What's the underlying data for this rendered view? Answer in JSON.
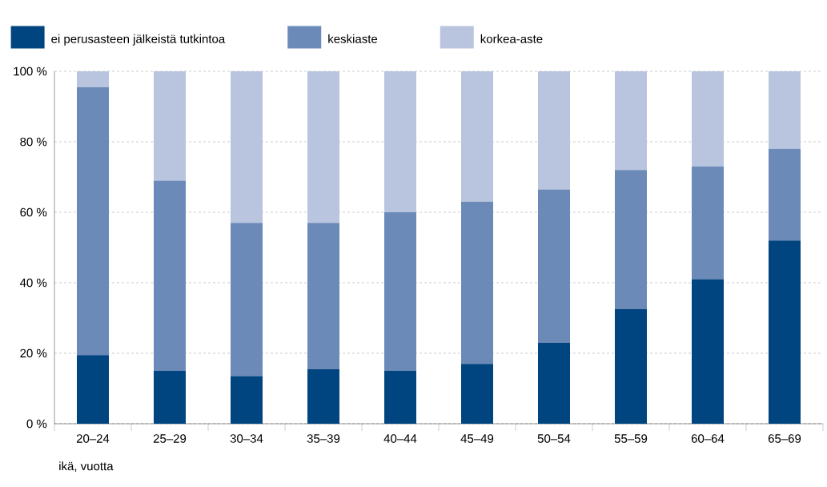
{
  "chart_data": {
    "type": "bar",
    "stacked": true,
    "xlabel": "ikä, vuotta",
    "categories": [
      "20–24",
      "25–29",
      "30–34",
      "35–39",
      "40–44",
      "45–49",
      "50–54",
      "55–59",
      "60–64",
      "65–69"
    ],
    "series": [
      {
        "name": "ei perusasteen jälkeistä tutkintoa",
        "color": "#00457f",
        "values": [
          19.5,
          15,
          13.5,
          15.5,
          15,
          17,
          23,
          32.5,
          41,
          52
        ]
      },
      {
        "name": "keskiaste",
        "color": "#6b8ab8",
        "values": [
          76,
          54,
          43.5,
          41.5,
          45,
          46,
          43.5,
          39.5,
          32,
          26
        ]
      },
      {
        "name": "korkea-aste",
        "color": "#b9c5de",
        "values": [
          4.5,
          31,
          43,
          43,
          40,
          37,
          33.5,
          28,
          27,
          22
        ]
      }
    ],
    "ylim": [
      0,
      100
    ],
    "yticks": [
      {
        "value": 0,
        "label": "0 %"
      },
      {
        "value": 20,
        "label": "20 %"
      },
      {
        "value": 40,
        "label": "40 %"
      },
      {
        "value": 60,
        "label": "60 %"
      },
      {
        "value": 80,
        "label": "80 %"
      },
      {
        "value": 100,
        "label": "100 %"
      }
    ],
    "grid": "y",
    "legend": "top"
  }
}
